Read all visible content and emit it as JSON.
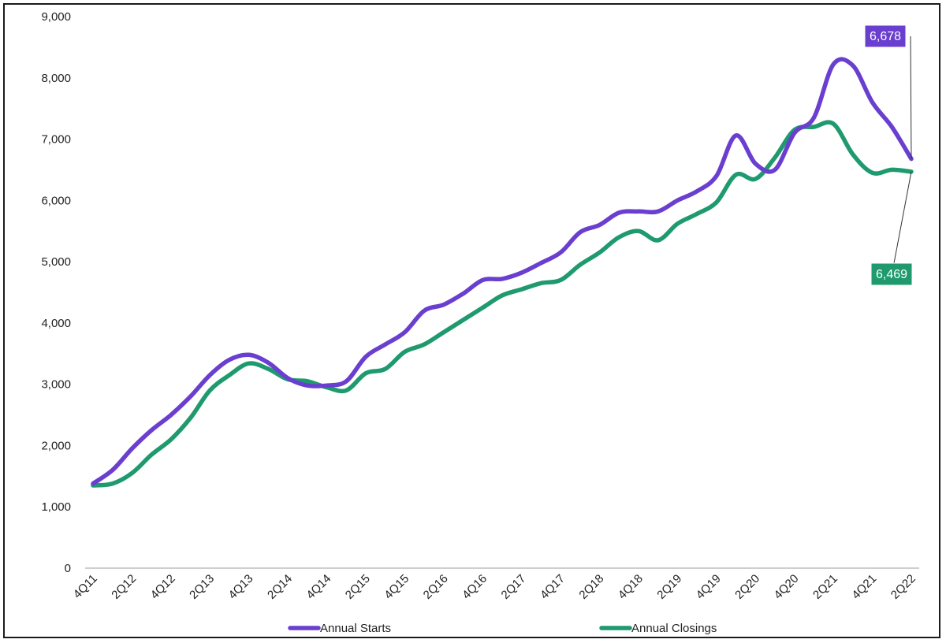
{
  "chart_data": {
    "type": "line",
    "title": "",
    "xlabel": "",
    "ylabel": "",
    "ylim": [
      0,
      9000
    ],
    "yticks": [
      "0",
      "1,000",
      "2,000",
      "3,000",
      "4,000",
      "5,000",
      "6,000",
      "7,000",
      "8,000",
      "9,000"
    ],
    "ytick_values": [
      0,
      1000,
      2000,
      3000,
      4000,
      5000,
      6000,
      7000,
      8000,
      9000
    ],
    "grid": false,
    "legend_position": "bottom",
    "x_quarters": [
      "4Q11",
      "1Q12",
      "2Q12",
      "3Q12",
      "4Q12",
      "1Q13",
      "2Q13",
      "3Q13",
      "4Q13",
      "1Q14",
      "2Q14",
      "3Q14",
      "4Q14",
      "1Q15",
      "2Q15",
      "3Q15",
      "4Q15",
      "1Q16",
      "2Q16",
      "3Q16",
      "4Q16",
      "1Q17",
      "2Q17",
      "3Q17",
      "4Q17",
      "1Q18",
      "2Q18",
      "3Q18",
      "4Q18",
      "1Q19",
      "2Q19",
      "3Q19",
      "4Q19",
      "1Q20",
      "2Q20",
      "3Q20",
      "4Q20",
      "1Q21",
      "2Q21",
      "3Q21",
      "4Q21",
      "1Q22",
      "2Q22"
    ],
    "x_tick_labels": [
      "4Q11",
      "2Q12",
      "4Q12",
      "2Q13",
      "4Q13",
      "2Q14",
      "4Q14",
      "2Q15",
      "4Q15",
      "2Q16",
      "4Q16",
      "2Q17",
      "4Q17",
      "2Q18",
      "4Q18",
      "2Q19",
      "4Q19",
      "2Q20",
      "4Q20",
      "2Q21",
      "4Q21",
      "2Q22"
    ],
    "series": [
      {
        "name": "Annual Starts",
        "color": "#6a3fcf",
        "values": [
          1380,
          1600,
          1950,
          2250,
          2500,
          2800,
          3150,
          3400,
          3480,
          3350,
          3100,
          2980,
          2980,
          3050,
          3450,
          3650,
          3850,
          4200,
          4300,
          4480,
          4700,
          4720,
          4820,
          4980,
          5150,
          5480,
          5600,
          5800,
          5820,
          5820,
          6000,
          6150,
          6400,
          7060,
          6600,
          6500,
          7100,
          7350,
          8220,
          8200,
          7600,
          7200,
          6678
        ],
        "end_label": "6,678"
      },
      {
        "name": "Annual Closings",
        "color": "#1f9a6e",
        "values": [
          1350,
          1380,
          1550,
          1850,
          2100,
          2450,
          2900,
          3150,
          3340,
          3250,
          3080,
          3050,
          2950,
          2900,
          3180,
          3250,
          3530,
          3650,
          3850,
          4050,
          4250,
          4450,
          4550,
          4650,
          4700,
          4950,
          5150,
          5400,
          5500,
          5350,
          5620,
          5780,
          5970,
          6420,
          6350,
          6700,
          7150,
          7200,
          7250,
          6750,
          6450,
          6500,
          6469
        ],
        "end_label": "6,469"
      }
    ]
  }
}
